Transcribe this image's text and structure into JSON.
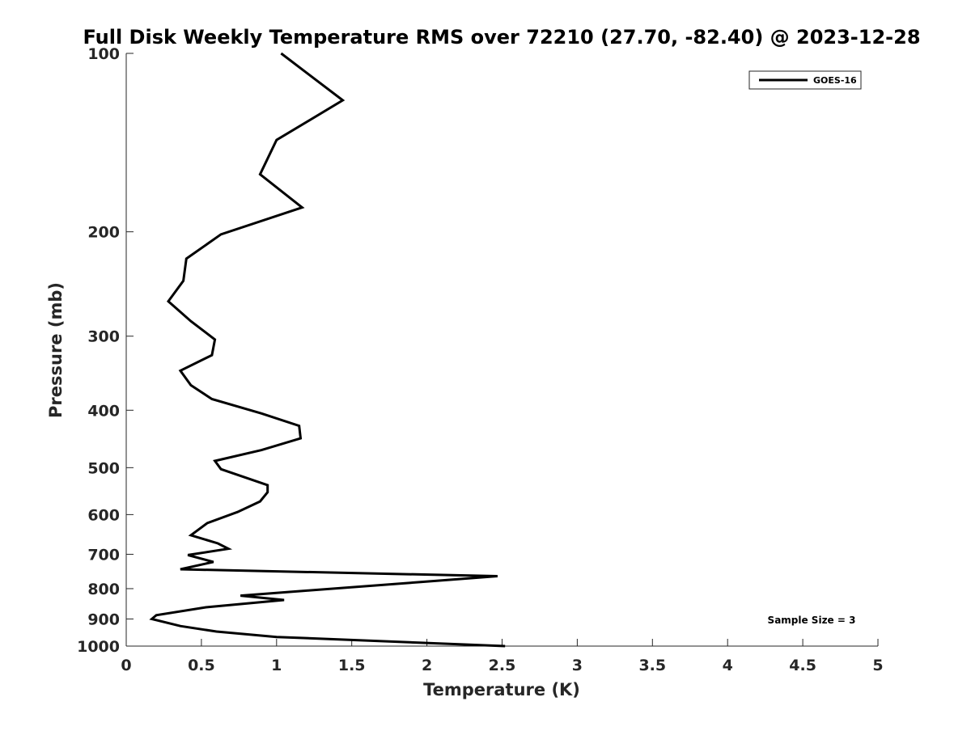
{
  "chart_data": {
    "type": "line",
    "title": "Full Disk Weekly Temperature RMS over 72210 (27.70, -82.40) @ 2023-12-28",
    "xlabel": "Temperature (K)",
    "ylabel": "Pressure (mb)",
    "xlim": [
      0,
      5
    ],
    "ylim": [
      100,
      1000
    ],
    "y_scale": "log",
    "y_reversed": true,
    "x_ticks": [
      0,
      0.5,
      1,
      1.5,
      2,
      2.5,
      3,
      3.5,
      4,
      4.5,
      5
    ],
    "x_tick_labels": [
      "0",
      "0.5",
      "1",
      "1.5",
      "2",
      "2.5",
      "3",
      "3.5",
      "4",
      "4.5",
      "5"
    ],
    "y_ticks": [
      100,
      200,
      300,
      400,
      500,
      600,
      700,
      800,
      900,
      1000
    ],
    "y_tick_labels": [
      "100",
      "200",
      "300",
      "400",
      "500",
      "600",
      "700",
      "800",
      "900",
      "1000"
    ],
    "legend_position": "top-right",
    "annotation": "Sample Size = 3",
    "series": [
      {
        "name": "GOES-16",
        "color": "#000000",
        "points": [
          [
            1.03,
            100
          ],
          [
            1.44,
            120
          ],
          [
            1.0,
            140
          ],
          [
            0.89,
            160
          ],
          [
            1.17,
            182
          ],
          [
            0.63,
            202
          ],
          [
            0.4,
            222
          ],
          [
            0.38,
            242
          ],
          [
            0.28,
            262
          ],
          [
            0.43,
            283
          ],
          [
            0.59,
            304
          ],
          [
            0.57,
            323
          ],
          [
            0.36,
            343
          ],
          [
            0.43,
            363
          ],
          [
            0.57,
            383
          ],
          [
            0.9,
            405
          ],
          [
            1.15,
            425
          ],
          [
            1.16,
            446
          ],
          [
            0.9,
            467
          ],
          [
            0.59,
            487
          ],
          [
            0.63,
            503
          ],
          [
            0.94,
            535
          ],
          [
            0.94,
            550
          ],
          [
            0.89,
            570
          ],
          [
            0.74,
            594
          ],
          [
            0.54,
            620
          ],
          [
            0.43,
            650
          ],
          [
            0.61,
            671
          ],
          [
            0.68,
            685
          ],
          [
            0.41,
            702
          ],
          [
            0.58,
            721
          ],
          [
            0.36,
            742
          ],
          [
            2.47,
            762
          ],
          [
            1.95,
            780
          ],
          [
            1.21,
            806
          ],
          [
            0.76,
            822
          ],
          [
            1.05,
            836
          ],
          [
            0.53,
            860
          ],
          [
            0.2,
            887
          ],
          [
            0.17,
            900
          ],
          [
            0.36,
            925
          ],
          [
            0.6,
            945
          ],
          [
            1.0,
            965
          ],
          [
            2.52,
            1000
          ]
        ]
      }
    ]
  }
}
